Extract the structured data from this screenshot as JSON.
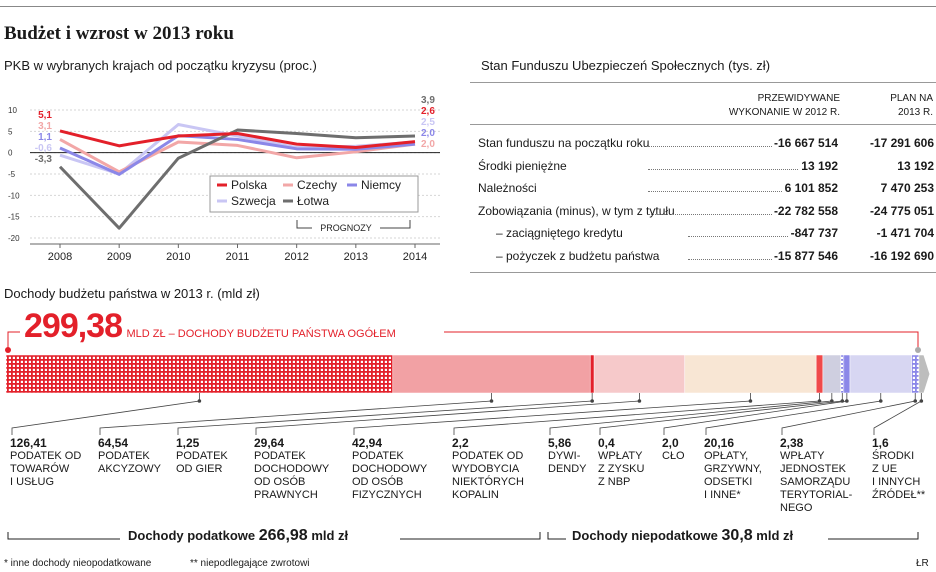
{
  "title": "Budżet i wzrost w 2013 roku",
  "gdp": {
    "subtitle": "PKB w wybranych krajach od początku kryzysu (proc.)",
    "forecast_label": "PROGNOZY",
    "legend": [
      "Polska",
      "Czechy",
      "Niemcy",
      "Szwecja",
      "Łotwa"
    ],
    "colors": {
      "Polska": "#e3202a",
      "Czechy": "#f2a7a7",
      "Niemcy": "#8b87e8",
      "Szwecja": "#c9c6f4",
      "Łotwa": "#6e6e6e"
    },
    "start_labels": [
      {
        "text": "5,1",
        "color": "#e3202a"
      },
      {
        "text": "3,1",
        "color": "#f2a7a7"
      },
      {
        "text": "1,1",
        "color": "#8b87e8"
      },
      {
        "text": "-0,6",
        "color": "#c9c6f4"
      },
      {
        "text": "-3,3",
        "color": "#6e6e6e"
      }
    ],
    "end_labels": [
      {
        "text": "3,9",
        "color": "#6e6e6e"
      },
      {
        "text": "2,6",
        "color": "#e3202a"
      },
      {
        "text": "2,5",
        "color": "#c9c6f4"
      },
      {
        "text": "2,0",
        "color": "#8b87e8"
      },
      {
        "text": "2,0",
        "color": "#f2a7a7"
      }
    ]
  },
  "chart_data": {
    "type": "line",
    "x": [
      "2008",
      "2009",
      "2010",
      "2011",
      "2012",
      "2013",
      "2014"
    ],
    "ylim": [
      -20,
      10
    ],
    "yticks": [
      "10",
      "5",
      "0",
      "-5",
      "-10",
      "-15",
      "-20"
    ],
    "ytick_values": [
      10,
      5,
      0,
      -5,
      -10,
      -15,
      -20
    ],
    "series": [
      {
        "name": "Polska",
        "values": [
          5.1,
          1.6,
          3.9,
          4.5,
          2.0,
          1.2,
          2.6
        ]
      },
      {
        "name": "Czechy",
        "values": [
          3.1,
          -4.5,
          2.5,
          1.7,
          -1.2,
          0.2,
          2.0
        ]
      },
      {
        "name": "Niemcy",
        "values": [
          1.1,
          -5.1,
          4.0,
          3.1,
          0.9,
          0.8,
          2.0
        ]
      },
      {
        "name": "Szwecja",
        "values": [
          -0.6,
          -5.0,
          6.6,
          3.9,
          1.2,
          1.5,
          2.5
        ]
      },
      {
        "name": "Łotwa",
        "values": [
          -3.3,
          -17.7,
          -1.3,
          5.3,
          4.5,
          3.5,
          3.9
        ]
      }
    ]
  },
  "fund": {
    "subtitle": "Stan Funduszu Ubezpieczeń Społecznych (tys. zł)",
    "col1": [
      "PRZEWIDYWANE",
      "WYKONANIE W 2012 R."
    ],
    "col2": [
      "PLAN NA",
      "2013 R."
    ],
    "rows": [
      {
        "label": "Stan funduszu na początku roku",
        "v1": "-16 667 514",
        "v2": "-17 291 606"
      },
      {
        "label": "Środki pieniężne",
        "v1": "13 192",
        "v2": "13 192"
      },
      {
        "label": "Należności",
        "v1": "6 101 852",
        "v2": "7 470 253"
      },
      {
        "label": "Zobowiązania (minus), w tym z tytułu",
        "v1": "-22 782 558",
        "v2": "-24 775 051"
      },
      {
        "label": "– zaciągniętego kredytu",
        "v1": "-847 737",
        "v2": "-1 471 704"
      },
      {
        "label": "– pożyczek z budżetu państwa",
        "v1": "-15 877 546",
        "v2": "-16 192 690"
      }
    ]
  },
  "income": {
    "subtitle": "Dochody budżetu państwa w 2013 r. (mld zł)",
    "total_value": "299,38",
    "total_label": "MLD ZŁ – DOCHODY BUDŻETU PAŃSTWA OGÓŁEM",
    "segments": [
      {
        "value": "126,41",
        "label": [
          "PODATEK OD",
          "TOWARÓW",
          "I USŁUG"
        ],
        "amount": 126.41
      },
      {
        "value": "64,54",
        "label": [
          "PODATEK",
          "AKCYZOWY"
        ],
        "amount": 64.54
      },
      {
        "value": "1,25",
        "label": [
          "PODATEK",
          "OD GIER"
        ],
        "amount": 1.25
      },
      {
        "value": "29,64",
        "label": [
          "PODATEK",
          "DOCHODOWY",
          "OD OSÓB",
          "PRAWNYCH"
        ],
        "amount": 29.64
      },
      {
        "value": "42,94",
        "label": [
          "PODATEK",
          "DOCHODOWY",
          "OD OSÓB",
          "FIZYCZNYCH"
        ],
        "amount": 42.94
      },
      {
        "value": "2,2",
        "label": [
          "PODATEK OD",
          "WYDOBYCIA",
          "NIEKTÓRYCH",
          "KOPALIN"
        ],
        "amount": 2.2
      },
      {
        "value": "5,86",
        "label": [
          "DYWI-",
          "DENDY"
        ],
        "amount": 5.86
      },
      {
        "value": "0,4",
        "label": [
          "WPŁATY",
          "Z ZYSKU",
          "Z NBP"
        ],
        "amount": 0.4
      },
      {
        "value": "2,0",
        "label": [
          "CŁO"
        ],
        "amount": 2.0
      },
      {
        "value": "20,16",
        "label": [
          "OPŁATY,",
          "GRZYWNY,",
          "ODSETKI",
          "I INNE*"
        ],
        "amount": 20.16
      },
      {
        "value": "2,38",
        "label": [
          "WPŁATY",
          "JEDNOSTEK",
          "SAMORZĄDU",
          "TERYTORIAL-",
          "NEGO"
        ],
        "amount": 2.38
      },
      {
        "value": "1,6",
        "label": [
          "ŚRODKI",
          "Z UE",
          "I INNYCH",
          "ŹRÓDEŁ**"
        ],
        "amount": 1.6
      }
    ],
    "tax_total_label": "Dochody podatkowe",
    "tax_total_value": "266,98",
    "tax_total_unit": "mld zł",
    "nontax_total_label": "Dochody niepodatkowe",
    "nontax_total_value": "30,8",
    "nontax_total_unit": "mld zł"
  },
  "footnotes": {
    "f1": "* inne dochody nieopodatkowane",
    "f2": "** niepodlegające zwrotowi",
    "credit": "ŁR"
  }
}
